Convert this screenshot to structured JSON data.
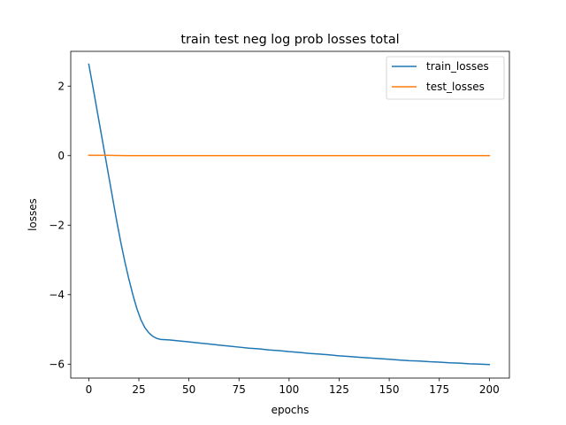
{
  "chart_data": {
    "type": "line",
    "title": "train test neg log prob losses total",
    "xlabel": "epochs",
    "ylabel": "losses",
    "xlim": [
      -9,
      210
    ],
    "ylim": [
      -6.4,
      3.0
    ],
    "xticks": [
      0,
      25,
      50,
      75,
      100,
      125,
      150,
      175,
      200
    ],
    "yticks": [
      -6,
      -4,
      -2,
      0,
      2
    ],
    "ytick_labels": [
      "−6",
      "−4",
      "−2",
      "0",
      "2"
    ],
    "grid": false,
    "legend_position": "top-right",
    "series": [
      {
        "name": "train_losses",
        "color": "#1f77b4",
        "x": [
          0,
          2,
          4,
          6,
          8,
          10,
          12,
          14,
          16,
          18,
          20,
          22,
          24,
          26,
          28,
          30,
          32,
          34,
          36,
          40,
          45,
          50,
          55,
          60,
          65,
          70,
          75,
          80,
          85,
          90,
          95,
          100,
          105,
          110,
          115,
          120,
          125,
          130,
          135,
          140,
          145,
          150,
          155,
          160,
          165,
          170,
          175,
          180,
          185,
          190,
          195,
          200
        ],
        "y": [
          2.63,
          2.0,
          1.35,
          0.7,
          0.05,
          -0.6,
          -1.25,
          -1.9,
          -2.5,
          -3.05,
          -3.55,
          -4.0,
          -4.4,
          -4.72,
          -4.95,
          -5.1,
          -5.2,
          -5.26,
          -5.29,
          -5.3,
          -5.33,
          -5.36,
          -5.39,
          -5.42,
          -5.45,
          -5.48,
          -5.51,
          -5.54,
          -5.56,
          -5.59,
          -5.61,
          -5.64,
          -5.66,
          -5.69,
          -5.71,
          -5.73,
          -5.76,
          -5.78,
          -5.8,
          -5.82,
          -5.84,
          -5.86,
          -5.88,
          -5.9,
          -5.91,
          -5.93,
          -5.94,
          -5.96,
          -5.97,
          -5.99,
          -6.0,
          -6.01
        ]
      },
      {
        "name": "test_losses",
        "color": "#ff7f0e",
        "x": [
          0,
          10,
          20,
          30,
          50,
          75,
          100,
          125,
          150,
          175,
          200
        ],
        "y": [
          0.01,
          0.01,
          0.0,
          0.0,
          0.0,
          0.0,
          0.0,
          0.0,
          0.0,
          0.0,
          0.0
        ]
      }
    ]
  }
}
